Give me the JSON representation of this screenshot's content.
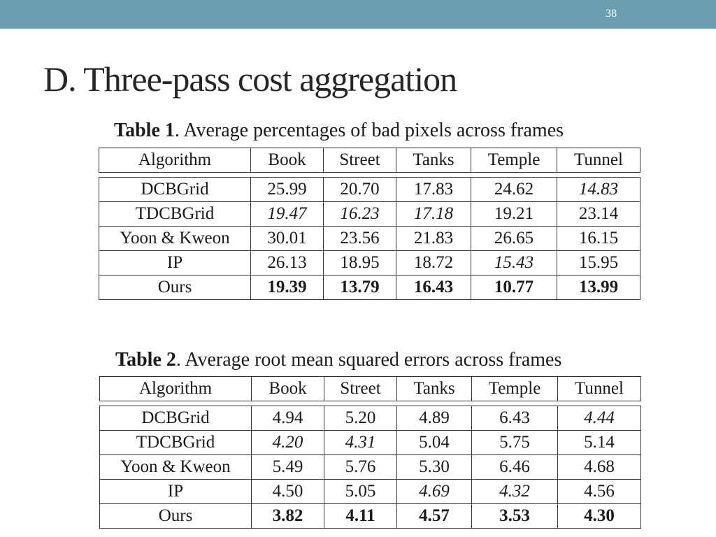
{
  "slide": {
    "number": "38",
    "title": "D. Three-pass cost aggregation"
  },
  "tables": [
    {
      "caption_label": "Table 1",
      "caption_text": ". Average percentages of bad pixels across frames",
      "columns": [
        "Algorithm",
        "Book",
        "Street",
        "Tanks",
        "Temple",
        "Tunnel"
      ],
      "rows": [
        {
          "cells": [
            "DCBGrid",
            "25.99",
            "20.70",
            "17.83",
            "24.62",
            "14.83"
          ],
          "italic": [
            5
          ],
          "bold": []
        },
        {
          "cells": [
            "TDCBGrid",
            "19.47",
            "16.23",
            "17.18",
            "19.21",
            "23.14"
          ],
          "italic": [
            1,
            2,
            3
          ],
          "bold": []
        },
        {
          "cells": [
            "Yoon & Kweon",
            "30.01",
            "23.56",
            "21.83",
            "26.65",
            "16.15"
          ],
          "italic": [],
          "bold": []
        },
        {
          "cells": [
            "IP",
            "26.13",
            "18.95",
            "18.72",
            "15.43",
            "15.95"
          ],
          "italic": [
            4
          ],
          "bold": []
        },
        {
          "cells": [
            "Ours",
            "19.39",
            "13.79",
            "16.43",
            "10.77",
            "13.99"
          ],
          "italic": [],
          "bold": [
            1,
            2,
            3,
            4,
            5
          ]
        }
      ]
    },
    {
      "caption_label": "Table 2",
      "caption_text": ". Average root mean squared errors across frames",
      "columns": [
        "Algorithm",
        "Book",
        "Street",
        "Tanks",
        "Temple",
        "Tunnel"
      ],
      "rows": [
        {
          "cells": [
            "DCBGrid",
            "4.94",
            "5.20",
            "4.89",
            "6.43",
            "4.44"
          ],
          "italic": [
            5
          ],
          "bold": []
        },
        {
          "cells": [
            "TDCBGrid",
            "4.20",
            "4.31",
            "5.04",
            "5.75",
            "5.14"
          ],
          "italic": [
            1,
            2
          ],
          "bold": []
        },
        {
          "cells": [
            "Yoon & Kweon",
            "5.49",
            "5.76",
            "5.30",
            "6.46",
            "4.68"
          ],
          "italic": [],
          "bold": []
        },
        {
          "cells": [
            "IP",
            "4.50",
            "5.05",
            "4.69",
            "4.32",
            "4.56"
          ],
          "italic": [
            3,
            4
          ],
          "bold": []
        },
        {
          "cells": [
            "Ours",
            "3.82",
            "4.11",
            "4.57",
            "3.53",
            "4.30"
          ],
          "italic": [],
          "bold": [
            1,
            2,
            3,
            4,
            5
          ]
        }
      ]
    }
  ],
  "colors": {
    "top_bar": "#6a9fb0",
    "title_text": "#262626",
    "table_border": "#333333"
  }
}
